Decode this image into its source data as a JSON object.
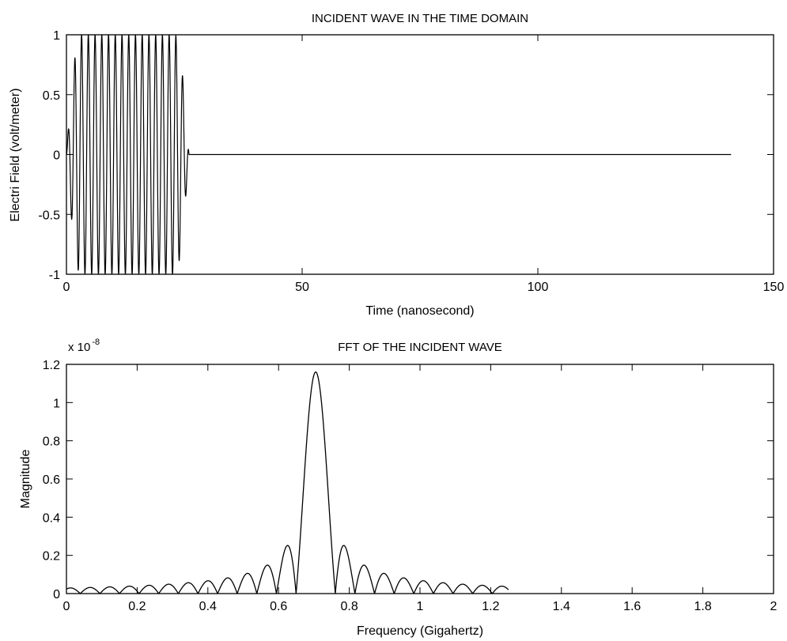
{
  "chart_data": [
    {
      "type": "line",
      "title": "INCIDENT WAVE IN THE TIME DOMAIN",
      "xlabel": "Time (nanosecond)",
      "ylabel": "Electri Field (volt/meter)",
      "xlim": [
        0,
        150
      ],
      "ylim": [
        -1,
        1
      ],
      "xticks": [
        0,
        50,
        100,
        150
      ],
      "yticks": [
        -1,
        -0.5,
        0,
        0.5,
        1
      ],
      "xtick_labels": [
        "0",
        "50",
        "100",
        "150"
      ],
      "ytick_labels": [
        "-1",
        "-0.5",
        "0",
        "0.5",
        "1"
      ],
      "grid": false,
      "color": "#000000",
      "series": [
        {
          "signal": "windowed sinusoid burst",
          "carrier_frequency_ghz": 0.7,
          "amplitude": 1,
          "burst_start_ns": 0,
          "burst_end_ns": 26,
          "ramp_ns": 3,
          "trace_end_ns": 141,
          "value_after_burst": 0
        }
      ]
    },
    {
      "type": "line",
      "title": "FFT OF THE INCIDENT WAVE",
      "xlabel": "Frequency (Gigahertz)",
      "ylabel": "Magnitude",
      "y_multiplier_label": "x 10",
      "y_multiplier_exponent": "-8",
      "xlim": [
        0,
        2
      ],
      "ylim": [
        0,
        1.2
      ],
      "xticks": [
        0,
        0.2,
        0.4,
        0.6,
        0.8,
        1,
        1.2,
        1.4,
        1.6,
        1.8,
        2
      ],
      "yticks": [
        0,
        0.2,
        0.4,
        0.6,
        0.8,
        1,
        1.2
      ],
      "xtick_labels": [
        "0",
        "0.2",
        "0.4",
        "0.6",
        "0.8",
        "1",
        "1.2",
        "1.4",
        "1.6",
        "1.8",
        "2"
      ],
      "ytick_labels": [
        "0",
        "0.2",
        "0.4",
        "0.6",
        "0.8",
        "1",
        "1.2"
      ],
      "grid": false,
      "color": "#000000",
      "series": [
        {
          "signal": "sinc magnitude spectrum",
          "center_frequency_ghz": 0.705,
          "peak_value": 1.16,
          "null_spacing_ghz": 0.0555,
          "x_start": 0,
          "x_end": 1.25
        }
      ]
    }
  ]
}
